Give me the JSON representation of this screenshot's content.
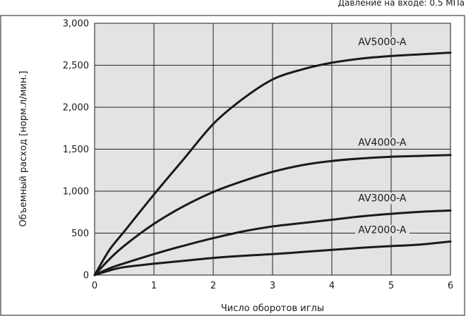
{
  "chart_data": {
    "type": "line",
    "note": "Давление на входе: 0.5 МПа",
    "xlabel": "Число оборотов иглы",
    "ylabel": "Объемный расход [норм.л/мин.]",
    "xlim": [
      0,
      6
    ],
    "ylim": [
      0,
      3000
    ],
    "xticks": [
      "0",
      "1",
      "2",
      "3",
      "4",
      "5",
      "6"
    ],
    "yticks": [
      "0",
      "500",
      "1,000",
      "1,500",
      "2,000",
      "2,500",
      "3,000"
    ],
    "grid": true,
    "background": "#e3e3e3",
    "line_color": "#1a1a1a",
    "series": [
      {
        "name": "AV5000-A",
        "x": [
          0,
          0.25,
          0.5,
          1,
          1.5,
          2,
          2.5,
          3,
          3.5,
          4,
          4.5,
          5,
          5.5,
          6
        ],
        "y": [
          0,
          300,
          520,
          960,
          1380,
          1800,
          2100,
          2330,
          2450,
          2530,
          2580,
          2610,
          2630,
          2650
        ]
      },
      {
        "name": "AV4000-A",
        "x": [
          0,
          0.25,
          0.5,
          1,
          1.5,
          2,
          2.5,
          3,
          3.5,
          4,
          4.5,
          5,
          5.5,
          6
        ],
        "y": [
          0,
          190,
          350,
          610,
          820,
          990,
          1120,
          1230,
          1310,
          1360,
          1390,
          1410,
          1420,
          1430
        ]
      },
      {
        "name": "AV3000-A",
        "x": [
          0,
          0.25,
          0.5,
          1,
          1.5,
          2,
          2.5,
          3,
          3.5,
          4,
          4.5,
          5,
          5.5,
          6
        ],
        "y": [
          0,
          80,
          140,
          250,
          350,
          440,
          520,
          580,
          620,
          660,
          700,
          730,
          755,
          770
        ]
      },
      {
        "name": "AV2000-A",
        "x": [
          0,
          0.25,
          0.5,
          1,
          1.5,
          2,
          2.5,
          3,
          3.5,
          4,
          4.5,
          5,
          5.5,
          6
        ],
        "y": [
          0,
          55,
          95,
          135,
          170,
          205,
          230,
          250,
          275,
          300,
          325,
          345,
          365,
          400
        ]
      }
    ],
    "series_label_positions": [
      {
        "x": 4.85,
        "y": 2740
      },
      {
        "x": 4.85,
        "y": 1540
      },
      {
        "x": 4.85,
        "y": 880
      },
      {
        "x": 4.85,
        "y": 500
      }
    ]
  }
}
